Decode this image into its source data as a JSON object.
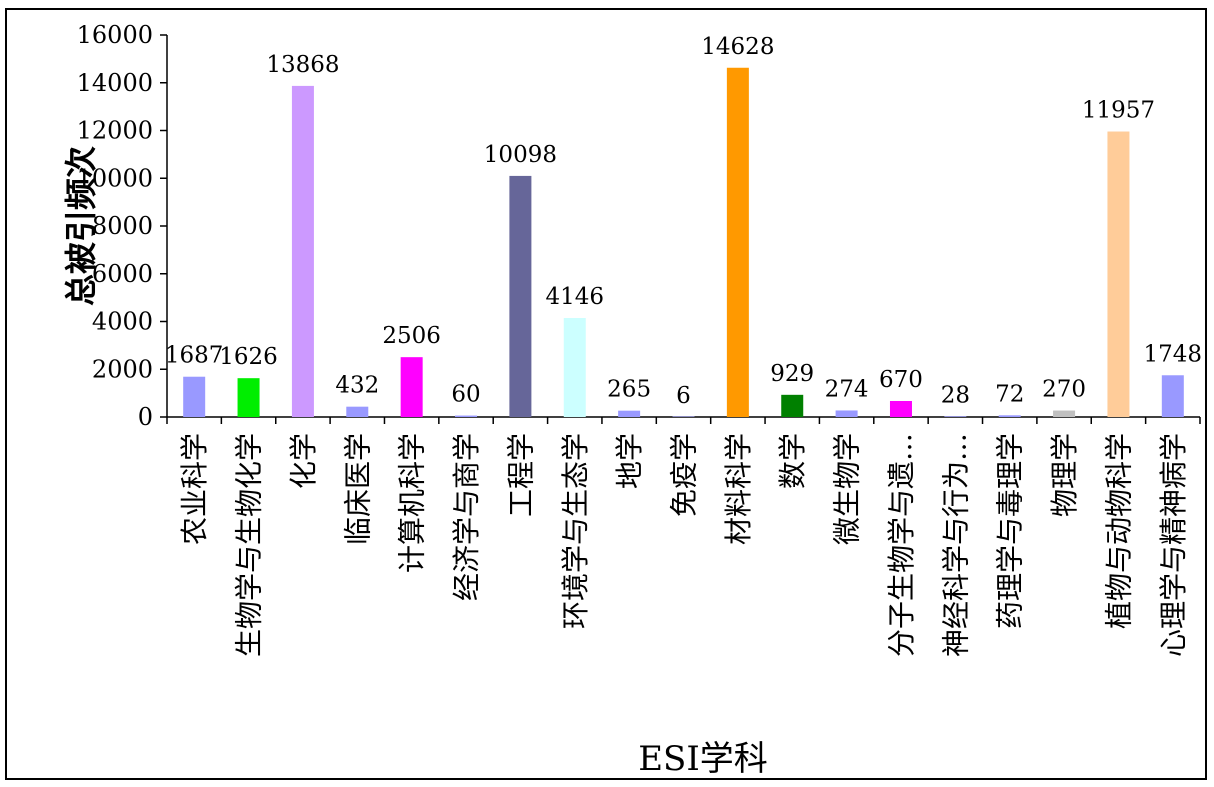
{
  "chart_data": {
    "type": "bar",
    "title": "",
    "xlabel": "ESI学科",
    "ylabel": "总被引频次",
    "ylim": [
      0,
      16000
    ],
    "yticks": [
      0,
      2000,
      4000,
      6000,
      8000,
      10000,
      12000,
      14000,
      16000
    ],
    "grid": false,
    "legend": "none",
    "categories": [
      "农业科学",
      "生物学与生物化学",
      "化学",
      "临床医学",
      "计算机科学",
      "经济学与商学",
      "工程学",
      "环境学与生态学",
      "地学",
      "免疫学",
      "材料科学",
      "数学",
      "微生物学",
      "分子生物学与遗…",
      "神经科学与行为…",
      "药理学与毒理学",
      "物理学",
      "植物与动物科学",
      "心理学与精神病学"
    ],
    "values": [
      1687,
      1626,
      13868,
      432,
      2506,
      60,
      10098,
      4146,
      265,
      6,
      14628,
      929,
      274,
      670,
      28,
      72,
      270,
      11957,
      1748
    ],
    "colors": [
      "#9999ff",
      "#00ee00",
      "#cc99ff",
      "#9999ff",
      "#ff00ff",
      "#9999ff",
      "#666699",
      "#ccffff",
      "#9999ff",
      "#9999ff",
      "#ff9900",
      "#008000",
      "#9999ff",
      "#ff00ff",
      "#9999ff",
      "#9999ff",
      "#c0c0c0",
      "#ffcc99",
      "#9999ff"
    ]
  }
}
